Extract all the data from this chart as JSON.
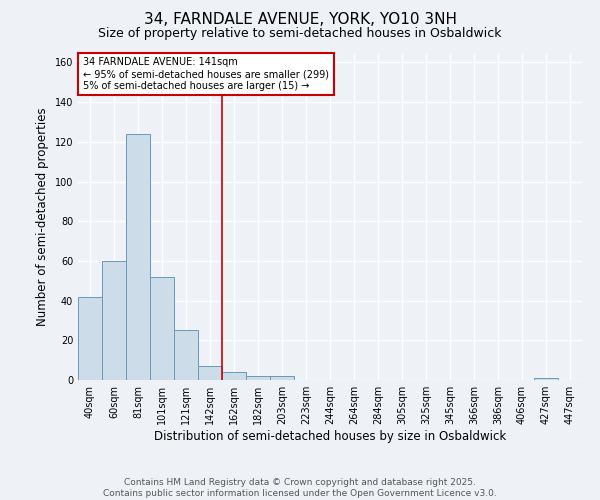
{
  "title": "34, FARNDALE AVENUE, YORK, YO10 3NH",
  "subtitle": "Size of property relative to semi-detached houses in Osbaldwick",
  "xlabel": "Distribution of semi-detached houses by size in Osbaldwick",
  "ylabel": "Number of semi-detached properties",
  "categories": [
    "40sqm",
    "60sqm",
    "81sqm",
    "101sqm",
    "121sqm",
    "142sqm",
    "162sqm",
    "182sqm",
    "203sqm",
    "223sqm",
    "244sqm",
    "264sqm",
    "284sqm",
    "305sqm",
    "325sqm",
    "345sqm",
    "366sqm",
    "386sqm",
    "406sqm",
    "427sqm",
    "447sqm"
  ],
  "values": [
    42,
    60,
    124,
    52,
    25,
    7,
    4,
    2,
    2,
    0,
    0,
    0,
    0,
    0,
    0,
    0,
    0,
    0,
    0,
    1,
    0
  ],
  "bar_color": "#ccdce8",
  "bar_edge_color": "#6699bb",
  "ylim": [
    0,
    165
  ],
  "yticks": [
    0,
    20,
    40,
    60,
    80,
    100,
    120,
    140,
    160
  ],
  "property_line_x": 5.5,
  "property_label": "34 FARNDALE AVENUE: 141sqm",
  "annotation_line1": "← 95% of semi-detached houses are smaller (299)",
  "annotation_line2": "5% of semi-detached houses are larger (15) →",
  "annotation_box_color": "#ffffff",
  "annotation_box_edge_color": "#cc0000",
  "line_color": "#cc0000",
  "footnote1": "Contains HM Land Registry data © Crown copyright and database right 2025.",
  "footnote2": "Contains public sector information licensed under the Open Government Licence v3.0.",
  "background_color": "#eef2f7",
  "grid_color": "#ffffff",
  "title_fontsize": 11,
  "subtitle_fontsize": 9,
  "axis_label_fontsize": 8.5,
  "tick_fontsize": 7,
  "annotation_fontsize": 7,
  "footnote_fontsize": 6.5
}
